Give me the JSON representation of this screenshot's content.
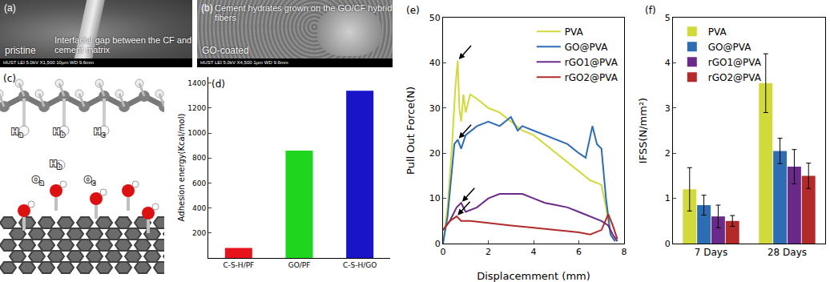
{
  "panels": [
    {
      "label": "(a)",
      "type": "image",
      "annotation": "Interfacial gap between the CF and cement matrix",
      "caption": "pristine",
      "footer": "HUST   LEI   5.0kV   X1,500   10µm   WD 9.6mm"
    },
    {
      "label": "(b)",
      "type": "image",
      "annotation": "Cement hydrates grown on the GO/CF hybrid fibers",
      "caption": "GO-coated",
      "footer": "HUST   LEI   5.0kV   X4,500   1µm   WD 9.6mm"
    },
    {
      "label": "(c)",
      "type": "molecular model",
      "atom_labels": [
        {
          "element": "H",
          "subscript": "a"
        },
        {
          "element": "H",
          "subscript": "b"
        },
        {
          "element": "H",
          "subscript": "c"
        },
        {
          "element": "O",
          "subscript": "a"
        },
        {
          "element": "H",
          "subscript": "b"
        },
        {
          "element": "O",
          "subscript": "c"
        }
      ]
    }
  ],
  "chart_data": [
    {
      "type": "bar",
      "title": "(d)",
      "y_label": "Adhesion energy(Kcal/mol)",
      "categories": [
        "C-S-H/PF",
        "GO/PF",
        "C-S-H/GO"
      ],
      "values": [
        80,
        860,
        1340
      ],
      "colors": [
        "#e8141b",
        "#1ed61e",
        "#1a14c8"
      ],
      "ylim": [
        0,
        1450
      ],
      "yticks": [
        200,
        400,
        600,
        800,
        1000,
        1200,
        1400
      ],
      "grid": false
    },
    {
      "type": "line",
      "title": "(e)",
      "x_label": "Displacemment (mm)",
      "y_label": "Pull Out Force(N)",
      "xlim": [
        0,
        8
      ],
      "xticks": [
        0,
        2,
        4,
        6,
        8
      ],
      "ylim": [
        0,
        50
      ],
      "yticks": [
        0,
        10,
        20,
        30,
        40,
        50
      ],
      "grid": false,
      "legend": "top-right",
      "series": [
        {
          "name": "PVA",
          "color": "#d2d93a",
          "x": [
            0,
            0.2,
            0.4,
            0.55,
            0.65,
            0.72,
            0.8,
            0.9,
            1.0,
            1.2,
            1.5,
            2,
            2.5,
            3,
            3.5,
            4,
            4.5,
            5,
            5.5,
            6,
            6.5,
            7,
            7.2,
            7.4,
            7.6
          ],
          "values": [
            0,
            8,
            22,
            35,
            40.5,
            30,
            27,
            33,
            29,
            33,
            32,
            30,
            29,
            27,
            25,
            24,
            22,
            20,
            18,
            16,
            14,
            13,
            8,
            2,
            0.5
          ]
        },
        {
          "name": "GO@PVA",
          "color": "#2e6db4",
          "x": [
            0,
            0.2,
            0.5,
            0.65,
            0.8,
            1,
            1.5,
            2,
            2.5,
            3,
            3.3,
            3.5,
            4,
            4.5,
            5,
            5.5,
            6,
            6.3,
            6.6,
            6.8,
            7,
            7.2,
            7.4,
            7.6
          ],
          "values": [
            0,
            6,
            22,
            23,
            21,
            24,
            26,
            27,
            26,
            28,
            25,
            26,
            25,
            24,
            23,
            22,
            20,
            19,
            26,
            22,
            21,
            10,
            2,
            0.5
          ]
        },
        {
          "name": "rGO1@PVA",
          "color": "#6a2a8a",
          "x": [
            0,
            0.3,
            0.6,
            0.8,
            1,
            1.5,
            2,
            2.5,
            3,
            3.5,
            4,
            4.5,
            5,
            5.5,
            6,
            6.5,
            7,
            7.3,
            7.5,
            7.7
          ],
          "values": [
            3,
            5,
            8,
            9,
            7,
            8,
            10,
            11,
            11,
            11,
            10,
            9,
            8.5,
            8,
            7,
            6,
            5,
            4,
            2,
            0.5
          ]
        },
        {
          "name": "rGO2@PVA",
          "color": "#b22a2a",
          "x": [
            0,
            0.3,
            0.6,
            0.8,
            1.2,
            2,
            3,
            4,
            5,
            6,
            6.5,
            7,
            7.3,
            7.5,
            7.7
          ],
          "values": [
            3,
            5,
            6,
            5,
            5,
            4.5,
            4,
            3.5,
            3,
            2.5,
            2,
            3,
            6.5,
            4,
            1
          ]
        }
      ]
    },
    {
      "type": "bar",
      "title": "(f)",
      "y_label": "IFSS(N/mm²)",
      "categories": [
        "7 Days",
        "28 Days"
      ],
      "ylim": [
        0,
        5
      ],
      "yticks": [
        0,
        1,
        2,
        3,
        4,
        5
      ],
      "grid": false,
      "legend": "top-left",
      "series": [
        {
          "name": "PVA",
          "color": "#d2d93a",
          "values": [
            1.2,
            3.55
          ],
          "errors": [
            0.48,
            0.65
          ]
        },
        {
          "name": "GO@PVA",
          "color": "#2e6db4",
          "values": [
            0.85,
            2.05
          ],
          "errors": [
            0.22,
            0.28
          ]
        },
        {
          "name": "rGO1@PVA",
          "color": "#6a2a8a",
          "values": [
            0.6,
            1.7
          ],
          "errors": [
            0.25,
            0.38
          ]
        },
        {
          "name": "rGO2@PVA",
          "color": "#b22a2a",
          "values": [
            0.5,
            1.5
          ],
          "errors": [
            0.12,
            0.28
          ]
        }
      ]
    }
  ]
}
